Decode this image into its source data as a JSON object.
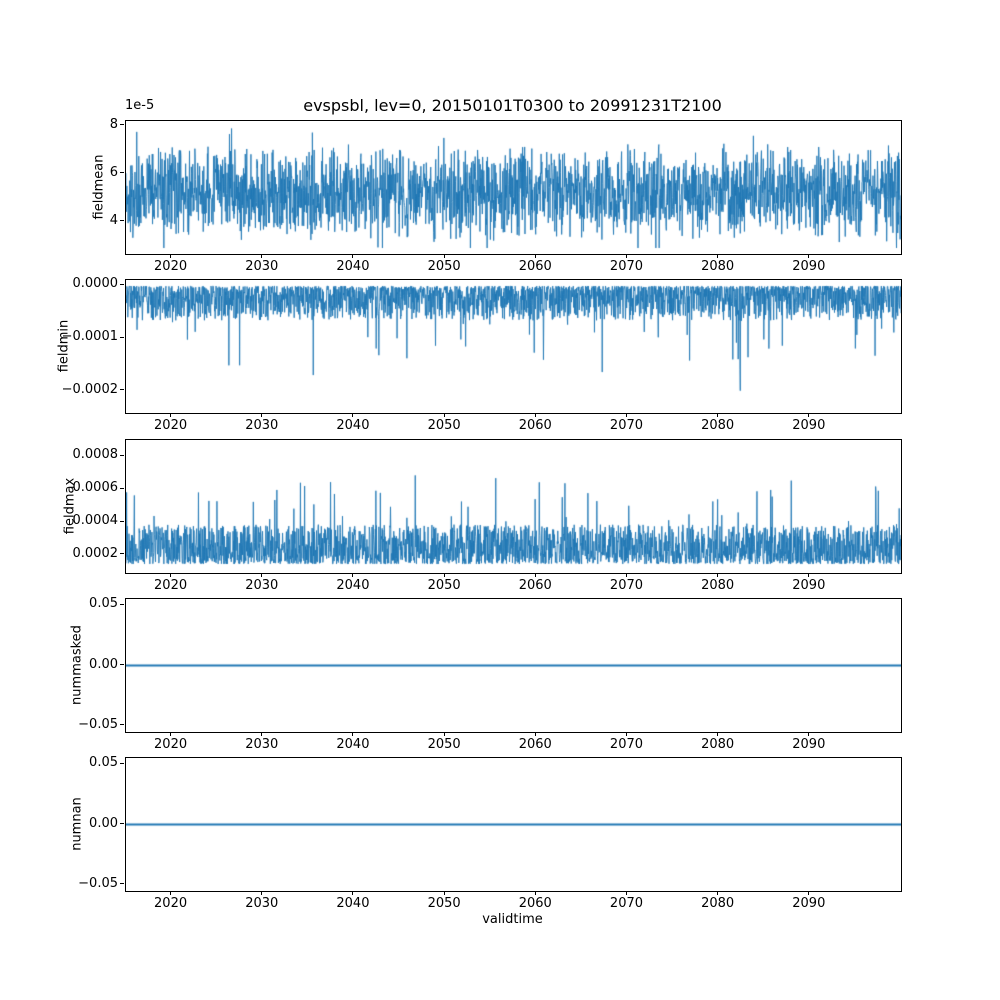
{
  "figure": {
    "title": "evspsbl, lev=0, 20150101T0300 to 20991231T2100",
    "xlabel": "validtime",
    "line_color": "#1f77b4",
    "background": "#ffffff",
    "spine_color": "#000000"
  },
  "render": {
    "n_points": 2600,
    "seed": 20150101
  },
  "chart_data": [
    {
      "type": "line",
      "name": "fieldmean",
      "ylabel": "fieldmean",
      "offset_label": "1e-5",
      "xlim": [
        2015,
        2100
      ],
      "ylim": [
        2.65e-05,
        8.2e-05
      ],
      "x_ticks": [
        2020,
        2030,
        2040,
        2050,
        2060,
        2070,
        2080,
        2090
      ],
      "x_tick_labels": [
        "2020",
        "2030",
        "2040",
        "2050",
        "2060",
        "2070",
        "2080",
        "2090"
      ],
      "y_ticks": [
        4e-05,
        6e-05,
        8e-05
      ],
      "y_tick_labels": [
        "4",
        "6",
        "8"
      ],
      "summary": "dense noisy band ~3.5e-5 to 7e-5, peaks to ~7.9e-5, dips to ~2.9e-5, no trend",
      "signal": {
        "type": "band",
        "center": 5.2e-05,
        "half_width": 1.5e-05,
        "spike_prob": 0.06,
        "spike_up_amp": 1e-05,
        "spike_down_amp": 1.3e-05,
        "clip_min": 2.9e-05,
        "clip_max": 7.9e-05
      }
    },
    {
      "type": "line",
      "name": "fieldmin",
      "ylabel": "fieldmin",
      "offset_label": "",
      "xlim": [
        2015,
        2100
      ],
      "ylim": [
        -0.000242,
        1e-05
      ],
      "x_ticks": [
        2020,
        2030,
        2040,
        2050,
        2060,
        2070,
        2080,
        2090
      ],
      "x_tick_labels": [
        "2020",
        "2030",
        "2040",
        "2050",
        "2060",
        "2070",
        "2080",
        "2090"
      ],
      "y_ticks": [
        0,
        -0.0001,
        -0.0002
      ],
      "y_tick_labels": [
        "0.0000",
        "−0.0001",
        "−0.0002"
      ],
      "summary": "values hug 0 from below (band to ~-7e-5) with downward spikes to ~-2.3e-4, deepest near 2080",
      "signal": {
        "type": "band_below",
        "ceiling": -1.5e-06,
        "band_depth": 6.5e-05,
        "spike_prob": 0.02,
        "spike_amp": 0.00016,
        "clip_min": -0.000235,
        "clip_max": 0
      }
    },
    {
      "type": "line",
      "name": "fieldmax",
      "ylabel": "fieldmax",
      "offset_label": "",
      "xlim": [
        2015,
        2100
      ],
      "ylim": [
        9e-05,
        0.0009
      ],
      "x_ticks": [
        2020,
        2030,
        2040,
        2050,
        2060,
        2070,
        2080,
        2090
      ],
      "x_tick_labels": [
        "2020",
        "2030",
        "2040",
        "2050",
        "2060",
        "2070",
        "2080",
        "2090"
      ],
      "y_ticks": [
        0.0002,
        0.0004,
        0.0006,
        0.0008
      ],
      "y_tick_labels": [
        "0.0002",
        "0.0004",
        "0.0006",
        "0.0008"
      ],
      "summary": "dense noisy band ~1.5e-4 to 4e-4 with upward spikes to ~8.5e-4 (largest near 2081 and 2097)",
      "signal": {
        "type": "band_above",
        "floor": 0.000145,
        "band_height": 0.00024,
        "spike_prob": 0.025,
        "spike_amp": 0.00046,
        "clip_min": 0.00013,
        "clip_max": 0.00087
      }
    },
    {
      "type": "line",
      "name": "nummasked",
      "ylabel": "nummasked",
      "offset_label": "",
      "xlim": [
        2015,
        2100
      ],
      "ylim": [
        -0.055,
        0.055
      ],
      "x_ticks": [
        2020,
        2030,
        2040,
        2050,
        2060,
        2070,
        2080,
        2090
      ],
      "x_tick_labels": [
        "2020",
        "2030",
        "2040",
        "2050",
        "2060",
        "2070",
        "2080",
        "2090"
      ],
      "y_ticks": [
        0.05,
        0.0,
        -0.05
      ],
      "y_tick_labels": [
        "0.05",
        "0.00",
        "−0.05"
      ],
      "summary": "constant 0 for entire period",
      "signal": {
        "type": "constant",
        "value": 0
      }
    },
    {
      "type": "line",
      "name": "numnan",
      "ylabel": "numnan",
      "offset_label": "",
      "xlim": [
        2015,
        2100
      ],
      "ylim": [
        -0.055,
        0.055
      ],
      "x_ticks": [
        2020,
        2030,
        2040,
        2050,
        2060,
        2070,
        2080,
        2090
      ],
      "x_tick_labels": [
        "2020",
        "2030",
        "2040",
        "2050",
        "2060",
        "2070",
        "2080",
        "2090"
      ],
      "y_ticks": [
        0.05,
        0.0,
        -0.05
      ],
      "y_tick_labels": [
        "0.05",
        "0.00",
        "−0.05"
      ],
      "summary": "constant 0 for entire period",
      "signal": {
        "type": "constant",
        "value": 0
      }
    }
  ]
}
